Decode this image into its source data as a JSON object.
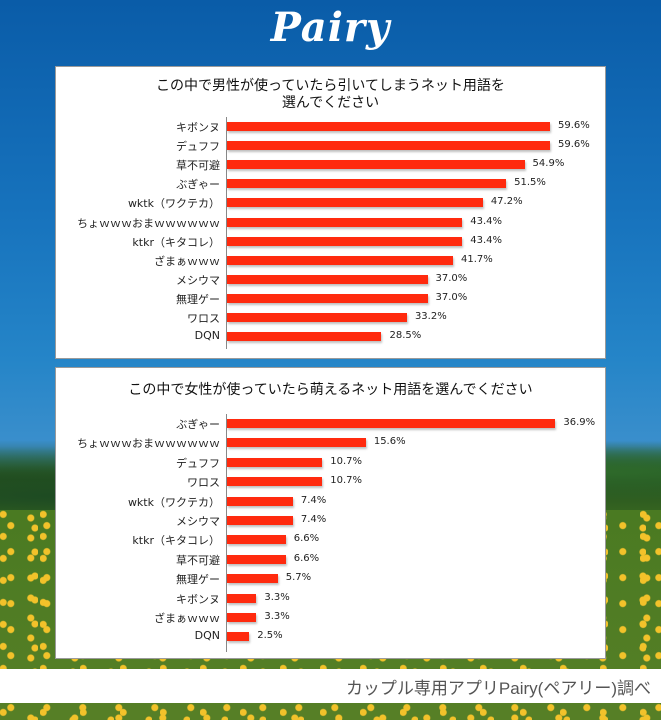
{
  "app": {
    "logo": "Pairy"
  },
  "footer": {
    "source": "カップル専用アプリPairy(ペアリー)調べ"
  },
  "colors": {
    "bar": "#ff2a0e",
    "background_sky": "#1773bd",
    "panel": "#ffffff"
  },
  "chart_data": [
    {
      "type": "bar",
      "orientation": "horizontal",
      "title": "この中で男性が使っていたら引いてしまうネット用語を選んでください",
      "title_lines": [
        "この中で男性が使っていたら引いてしまうネット用語を",
        "選んでください"
      ],
      "categories": [
        "キボンヌ",
        "デュフフ",
        "草不可避",
        "ぶぎゃー",
        "wktk（ワクテカ）",
        "ちょｗｗｗおまｗｗｗｗｗｗ",
        "ktkr（キタコレ）",
        "ざまぁｗｗｗ",
        "メシウマ",
        "無理ゲー",
        "ワロス",
        "DQN"
      ],
      "values": [
        59.6,
        59.6,
        54.9,
        51.5,
        47.2,
        43.4,
        43.4,
        41.7,
        37.0,
        37.0,
        33.2,
        28.5
      ],
      "labels": [
        "59.6%",
        "59.6%",
        "54.9%",
        "51.5%",
        "47.2%",
        "43.4%",
        "43.4%",
        "41.7%",
        "37.0%",
        "37.0%",
        "33.2%",
        "28.5%"
      ],
      "xlabel": "",
      "ylabel": "",
      "unit": "%",
      "grid": false,
      "legend": "none"
    },
    {
      "type": "bar",
      "orientation": "horizontal",
      "title": "この中で女性が使っていたら萌えるネット用語を選んでください",
      "title_lines": [
        "この中で女性が使っていたら萌えるネット用語を選んでください"
      ],
      "categories": [
        "ぶぎゃー",
        "ちょｗｗｗおまｗｗｗｗｗｗ",
        "デュフフ",
        "ワロス",
        "wktk（ワクテカ）",
        "メシウマ",
        "ktkr（キタコレ）",
        "草不可避",
        "無理ゲー",
        "キボンヌ",
        "ざまぁｗｗｗ",
        "DQN"
      ],
      "values": [
        36.9,
        15.6,
        10.7,
        10.7,
        7.4,
        7.4,
        6.6,
        6.6,
        5.7,
        3.3,
        3.3,
        2.5
      ],
      "labels": [
        "36.9%",
        "15.6%",
        "10.7%",
        "10.7%",
        "7.4%",
        "7.4%",
        "6.6%",
        "6.6%",
        "5.7%",
        "3.3%",
        "3.3%",
        "2.5%"
      ],
      "xlabel": "",
      "ylabel": "",
      "unit": "%",
      "grid": false,
      "legend": "none"
    }
  ]
}
